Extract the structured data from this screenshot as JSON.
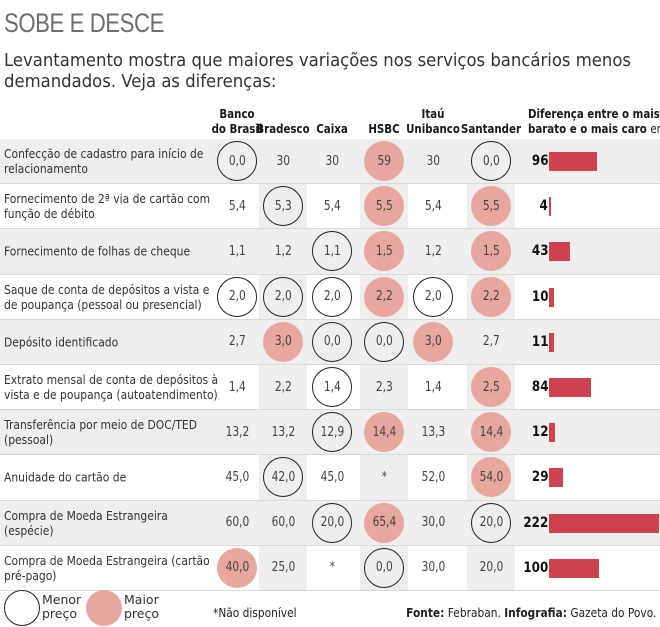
{
  "title": "SOBE E DESCE",
  "subtitle": "Levantamento mostra que maiores variações nos serviços bancários menos demandados. Veja as diferenças:",
  "columns": [
    {
      "line1": "Banco",
      "line2": "do Brasil"
    },
    {
      "line1": "",
      "line2": "Bradesco"
    },
    {
      "line1": "",
      "line2": "Caixa"
    },
    {
      "line1": "",
      "line2": "HSBC"
    },
    {
      "line1": "Itaú",
      "line2": "Unibanco"
    },
    {
      "line1": "",
      "line2": "Santander"
    }
  ],
  "diff_header": {
    "line1": "Diferença entre o mais",
    "line2_bold": "barato e o mais caro",
    "line2_light": "em %"
  },
  "chart_data": {
    "type": "table",
    "columns": [
      "Banco do Brasil",
      "Bradesco",
      "Caixa",
      "HSBC",
      "Itaú Unibanco",
      "Santander"
    ],
    "rows": [
      {
        "service": "Confecção de cadastro para início de relacionamento",
        "values": [
          "0,0",
          "30",
          "30",
          "59",
          "30",
          "0,0"
        ],
        "marks": [
          "min",
          "",
          "",
          "max",
          "",
          "min"
        ],
        "diff_label": "96",
        "diff": 96
      },
      {
        "service": "Fornecimento de 2ª via de cartão com função de débito",
        "values": [
          "5,4",
          "5,3",
          "5,4",
          "5,5",
          "5,4",
          "5,5"
        ],
        "marks": [
          "",
          "min",
          "",
          "max",
          "",
          "max"
        ],
        "diff_label": "4",
        "diff": 4
      },
      {
        "service": "Fornecimento de folhas de cheque",
        "values": [
          "1,1",
          "1,2",
          "1,1",
          "1,5",
          "1,2",
          "1,5"
        ],
        "marks": [
          "",
          "",
          "min",
          "max",
          "",
          "max"
        ],
        "diff_label": "43",
        "diff": 43
      },
      {
        "service": "Saque de conta de depósitos a vista e de poupança (pessoal ou presencial)",
        "values": [
          "2,0",
          "2,0",
          "2,0",
          "2,2",
          "2,0",
          "2,2"
        ],
        "marks": [
          "min",
          "min",
          "min",
          "max",
          "min",
          "max"
        ],
        "diff_label": "10",
        "diff": 10
      },
      {
        "service": "Depósito identificado",
        "values": [
          "2,7",
          "3,0",
          "0,0",
          "0,0",
          "3,0",
          "2,7"
        ],
        "marks": [
          "",
          "max",
          "min",
          "min",
          "max",
          ""
        ],
        "diff_label": "11",
        "diff": 11
      },
      {
        "service": "Extrato mensal de conta de depósitos à vista e de poupança (autoatendimento)",
        "values": [
          "1,4",
          "2,2",
          "1,4",
          "2,3",
          "1,4",
          "2,5"
        ],
        "marks": [
          "",
          "",
          "min",
          "",
          "",
          "max"
        ],
        "diff_label": "84",
        "diff": 84
      },
      {
        "service": "Transferência por meio de DOC/TED (pessoal)",
        "values": [
          "13,2",
          "13,2",
          "12,9",
          "14,4",
          "13,3",
          "14,4"
        ],
        "marks": [
          "",
          "",
          "min",
          "max",
          "",
          "max"
        ],
        "diff_label": "12",
        "diff": 12
      },
      {
        "service": "Anuidade do cartão de",
        "values": [
          "45,0",
          "42,0",
          "45,0",
          "*",
          "52,0",
          "54,0"
        ],
        "marks": [
          "",
          "min",
          "",
          "",
          "",
          "max"
        ],
        "diff_label": "29",
        "diff": 29
      },
      {
        "service": "Compra de Moeda Estrangeira (espécie)",
        "values": [
          "60,0",
          "60,0",
          "20,0",
          "65,4",
          "30,0",
          "20,0"
        ],
        "marks": [
          "",
          "",
          "min",
          "max",
          "",
          "min"
        ],
        "diff_label": "222",
        "diff": 222
      },
      {
        "service": "Compra de Moeda Estrangeira (cartão pré-pago)",
        "values": [
          "40,0",
          "25,0",
          "*",
          "0,0",
          "30,0",
          "20,0"
        ],
        "marks": [
          "max",
          "",
          "",
          "min",
          "",
          ""
        ],
        "diff_label": "100",
        "diff": 100
      }
    ],
    "diff_max": 222
  },
  "legend": {
    "min_line1": "Menor",
    "min_line2": "preço",
    "max_line1": "Maior",
    "max_line2": "preço"
  },
  "note": "*Não disponível",
  "source": {
    "label1": "Fonte:",
    "text1": " Febraban. ",
    "label2": "Infografia:",
    "text2": " Gazeta do Povo."
  }
}
